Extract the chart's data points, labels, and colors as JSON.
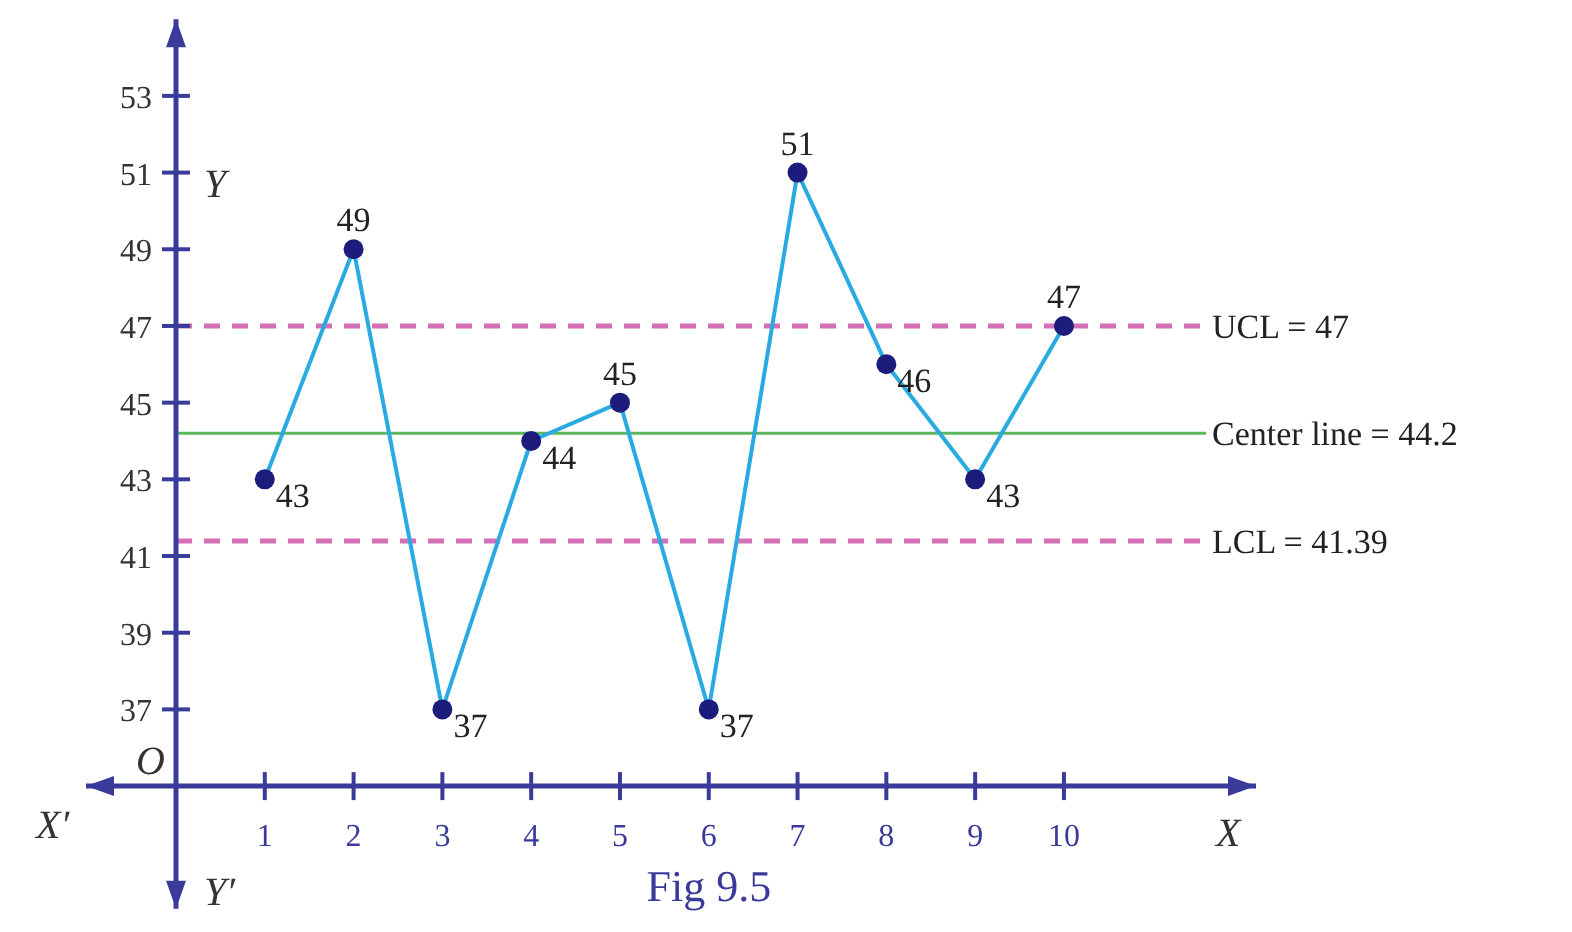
{
  "chart_data": {
    "type": "line",
    "xlabel": "X",
    "ylabel": "Y",
    "x": [
      1,
      2,
      3,
      4,
      5,
      6,
      7,
      8,
      9,
      10
    ],
    "series": [
      {
        "color": "#29abe2",
        "values": [
          43,
          49,
          37,
          44,
          45,
          37,
          51,
          46,
          43,
          47
        ]
      }
    ],
    "xlim": [
      0,
      11.6
    ],
    "ylim": [
      31.8,
      55
    ],
    "xticks": [
      1,
      2,
      3,
      4,
      5,
      6,
      7,
      8,
      9,
      10
    ],
    "yticks": [
      37,
      39,
      41,
      43,
      45,
      47,
      49,
      51,
      53
    ],
    "marker": "circle",
    "data_labels": true,
    "grid": false,
    "ref_lines": [
      {
        "axis": "y",
        "value": 47,
        "label": "UCL = 47",
        "color": "#d46fb8",
        "line_style": "dashed"
      },
      {
        "axis": "y",
        "value": 44.2,
        "label": "Center line = 44.2",
        "color": "#5cb85c",
        "line_style": "solid"
      },
      {
        "axis": "y",
        "value": 41.39,
        "label": "LCL = 41.39",
        "color": "#d46fb8",
        "line_style": "dashed"
      }
    ],
    "annotations": [
      "O",
      "X′",
      "Y′",
      "Fig 9.5"
    ]
  }
}
